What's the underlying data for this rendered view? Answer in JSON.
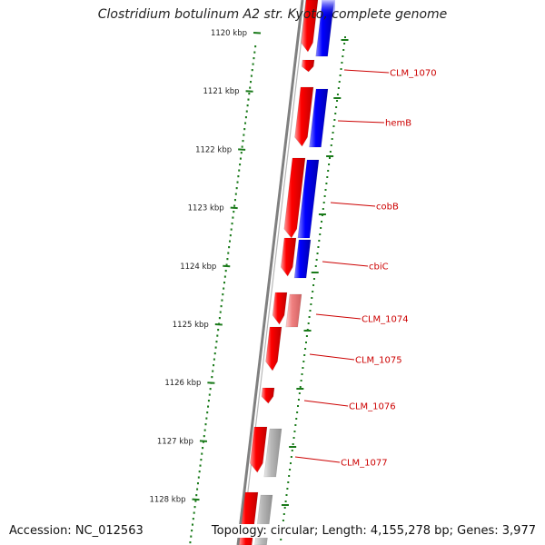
{
  "title": "Clostridium botulinum A2 str. Kyoto, complete genome",
  "footer": {
    "accession": "Accession: NC_012563",
    "stats": "Topology: circular; Length: 4,155,278 bp; Genes: 3,977"
  },
  "ruler_ticks": [
    "1120 kbp",
    "1121 kbp",
    "1122 kbp",
    "1123 kbp",
    "1124 kbp",
    "1125 kbp",
    "1126 kbp",
    "1127 kbp",
    "1128 kbp"
  ],
  "gene_labels": [
    "CLM_1070",
    "hemB",
    "cobB",
    "cbiC",
    "CLM_1074",
    "CLM_1075",
    "CLM_1076",
    "CLM_1077"
  ],
  "colors": {
    "forward_gene": "#ff0000",
    "reverse_gene": "#0000ff",
    "light_red_gene": "#f08080",
    "gray_gene": "#b0b0b0",
    "ruler_green": "#1a7a1a",
    "backbone_gray": "#808080",
    "label_red": "#cc0000"
  }
}
